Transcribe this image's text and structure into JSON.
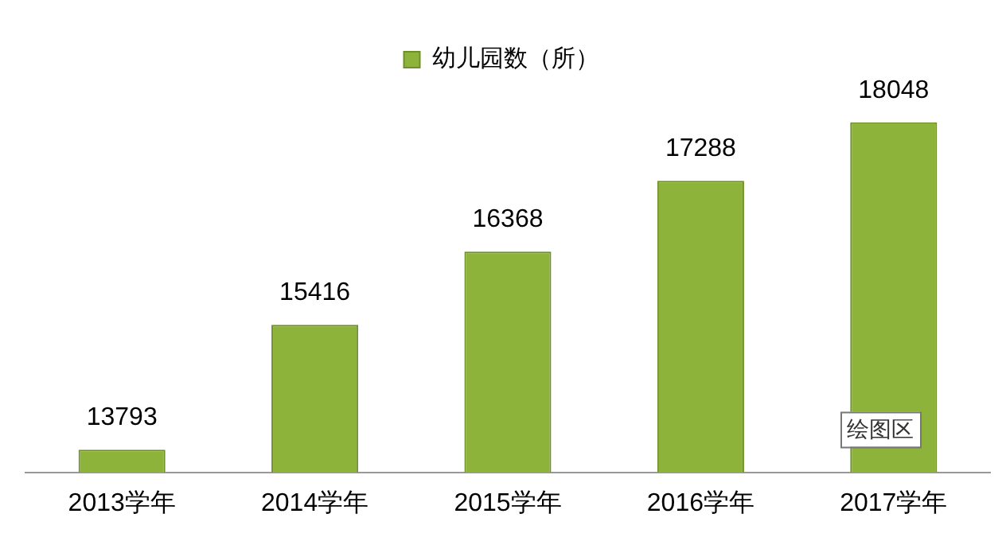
{
  "chart_data": {
    "type": "bar",
    "categories": [
      "2013学年",
      "2014学年",
      "2015学年",
      "2016学年",
      "2017学年"
    ],
    "series": [
      {
        "name": "幼儿园数（所）",
        "color": "#8db33a",
        "values": [
          13793,
          15416,
          16368,
          17288,
          18048
        ]
      }
    ],
    "tick_labels": "x",
    "data_labels": true,
    "legend": "top",
    "grid": false,
    "annotations": [
      "绘图区"
    ]
  }
}
